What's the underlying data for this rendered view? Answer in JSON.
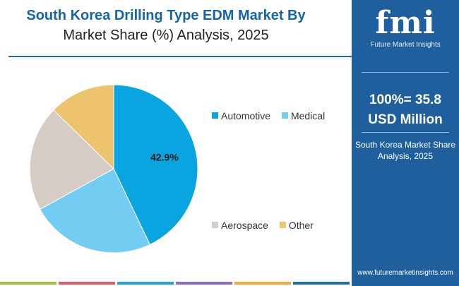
{
  "header": {
    "title_line1": "South Korea Drilling Type EDM Market By",
    "title_line2": "Market Share (%) Analysis, 2025"
  },
  "sidebar": {
    "logo_text": "fmi",
    "logo_caption": "Future Market Insights",
    "metric_line1": "100%= 35.8",
    "metric_line2": "USD Million",
    "subtitle_line1": "South Korea Market Share",
    "subtitle_line2": "Analysis, 2025",
    "url": "www.futuremarketinsights.com"
  },
  "chart_data": {
    "type": "pie",
    "categories": [
      "Automotive",
      "Medical",
      "Aerospace",
      "Other"
    ],
    "values": [
      42.9,
      24.1,
      20.3,
      12.7
    ],
    "colors": [
      "#0aa5e0",
      "#73cdf2",
      "#d6ccc6",
      "#eec36e"
    ],
    "data_labels": [
      "42.9%",
      "",
      "",
      ""
    ],
    "legend_placement": "right"
  },
  "colors": {
    "brand": "#1f5f9e",
    "title": "#1565a6",
    "bottom_bars": [
      "#9bc13c",
      "#e25a63",
      "#22a2dd",
      "#8e6bbf",
      "#f2a93b",
      "#1e6fb0"
    ]
  }
}
